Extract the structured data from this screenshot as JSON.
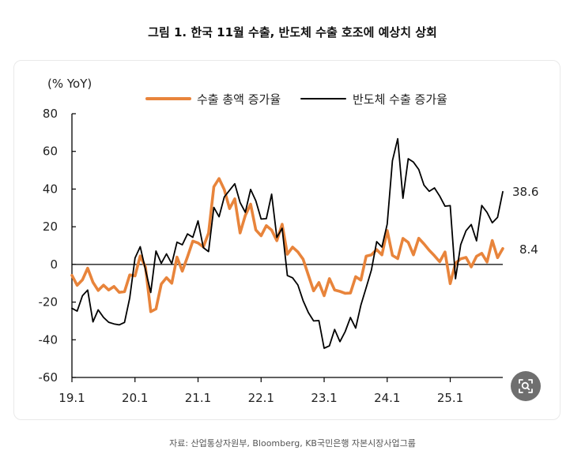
{
  "title": "그림 1. 한국 11월 수출, 반도체 수출 호조에 예상치 상회",
  "source": "자료: 산업통상자원부, Bloomberg, KB국민은행 자본시장사업그룹",
  "zoom_icon": "zoom-icon",
  "colors": {
    "export": "#e8843b",
    "semi": "#000000"
  },
  "chart_data": {
    "type": "line",
    "title": "그림 1. 한국 11월 수출, 반도체 수출 호조에 예상치 상회",
    "ylabel": "(% YoY)",
    "xlabel": "",
    "ylim": [
      -60,
      80
    ],
    "yticks": [
      80,
      60,
      40,
      20,
      0,
      -20,
      -40,
      -60
    ],
    "xlim": [
      0,
      82
    ],
    "xticks": [
      {
        "label": "19.1",
        "index": 0
      },
      {
        "label": "20.1",
        "index": 12
      },
      {
        "label": "21.1",
        "index": 24
      },
      {
        "label": "22.1",
        "index": 36
      },
      {
        "label": "23.1",
        "index": 48
      },
      {
        "label": "24.1",
        "index": 60
      },
      {
        "label": "25.1",
        "index": 72
      }
    ],
    "grid": false,
    "legend_position": "top",
    "series": [
      {
        "name": "수출 총액 증가율",
        "color": "#e8843b",
        "end_label": "8.4",
        "values": [
          -5.8,
          -11.1,
          -8.2,
          -2,
          -9.5,
          -13.8,
          -11,
          -13.6,
          -11.7,
          -14.8,
          -14.5,
          -5.6,
          -6.1,
          4.5,
          -1.4,
          -25.1,
          -23.6,
          -10.4,
          -7,
          -10,
          3.9,
          -3.6,
          4.1,
          12.4,
          11.4,
          9.3,
          16.6,
          41.2,
          45.6,
          39.7,
          29.6,
          34.8,
          16.7,
          26,
          32,
          18.3,
          15.2,
          20.6,
          18.2,
          12.6,
          21.3,
          5.4,
          9.2,
          6.6,
          2.8,
          -5.7,
          -14,
          -9.6,
          -16.6,
          -7.5,
          -13.6,
          -14.3,
          -15.3,
          -15.2,
          -6.5,
          -8.3,
          4.4,
          5.1,
          7.8,
          5.1,
          18,
          4.8,
          3.1,
          13.8,
          11.7,
          5.1,
          13.9,
          10.9,
          7.5,
          4.6,
          1.4,
          6.6,
          -10.2,
          0.7,
          3,
          3.7,
          -1.3,
          4.3,
          5.9,
          1.3,
          12.7,
          3.6,
          8.4
        ]
      },
      {
        "name": "반도체 수출 증가율",
        "color": "#000000",
        "end_label": "38.6",
        "values": [
          -23.3,
          -24.8,
          -16.6,
          -13.6,
          -30.5,
          -24.1,
          -28.1,
          -30.7,
          -31.6,
          -32.1,
          -30.8,
          -17.8,
          3.4,
          9.4,
          -2.8,
          -14.9,
          7.1,
          0.6,
          5.6,
          0.4,
          11.8,
          10.4,
          16.2,
          14.4,
          23.1,
          8.9,
          6.8,
          30.3,
          25.3,
          35.8,
          39.4,
          42.8,
          32.9,
          27.7,
          39.8,
          33.8,
          24.1,
          24.3,
          37.3,
          14.3,
          19.2,
          -5.9,
          -7.1,
          -10.9,
          -19.2,
          -25.6,
          -30,
          -29.8,
          -44.5,
          -43.2,
          -34.5,
          -41,
          -35.7,
          -28.2,
          -33.8,
          -21.6,
          -12.3,
          -3,
          12.1,
          9.2,
          21.4,
          55,
          66.7,
          35.1,
          56.1,
          54.3,
          50.4,
          42.1,
          38.8,
          40.6,
          36.3,
          30.9,
          31.2,
          -7.6,
          10.5,
          17.9,
          21.2,
          12.5,
          31.3,
          27.6,
          22.1,
          25,
          38.6
        ]
      }
    ]
  }
}
